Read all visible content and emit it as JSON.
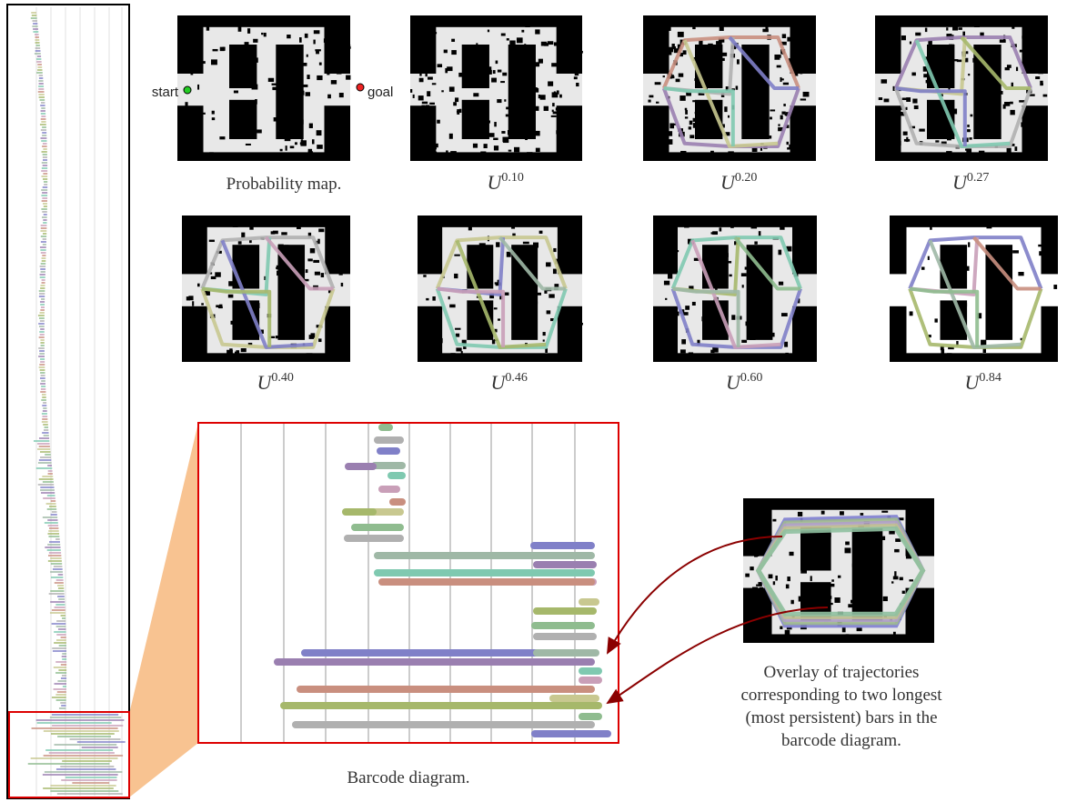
{
  "probability_map": {
    "start_label": "start",
    "goal_label": "goal",
    "caption": "Probability map."
  },
  "panels": [
    {
      "base": "U",
      "exponent": "0.10"
    },
    {
      "base": "U",
      "exponent": "0.20"
    },
    {
      "base": "U",
      "exponent": "0.27"
    },
    {
      "base": "U",
      "exponent": "0.40"
    },
    {
      "base": "U",
      "exponent": "0.46"
    },
    {
      "base": "U",
      "exponent": "0.60"
    },
    {
      "base": "U",
      "exponent": "0.84"
    }
  ],
  "barcode": {
    "caption": "Barcode diagram."
  },
  "overlay": {
    "caption": [
      "Overlay of trajectories",
      "corresponding to two longest",
      "(most persistent) bars in the",
      "barcode diagram."
    ]
  }
}
